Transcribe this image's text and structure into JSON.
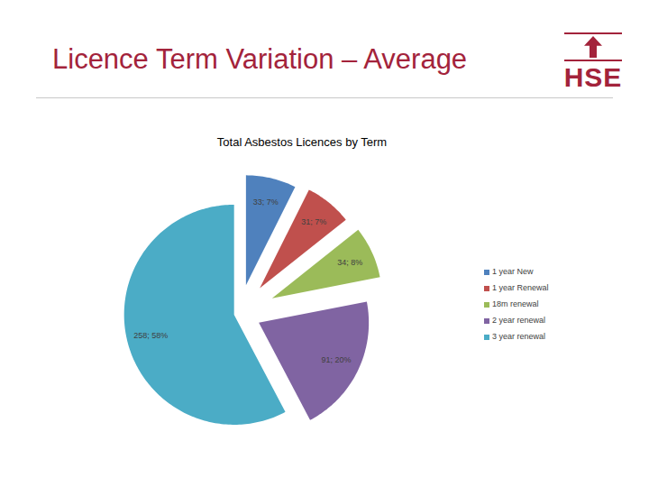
{
  "slide_title": "Licence Term Variation – Average",
  "logo": "HSE",
  "chart_data": {
    "type": "pie",
    "title": "Total Asbestos Licences by Term",
    "categories": [
      "1 year New",
      "1 year Renewal",
      "18m renewal",
      "2 year renewal",
      "3 year renewal"
    ],
    "values": [
      33,
      31,
      34,
      91,
      258
    ],
    "value_labels": [
      "33; 7%",
      "31; 7%",
      "34; 8%",
      "91; 20%",
      "258; 58%"
    ],
    "colors": [
      "#4F81BD",
      "#C0504D",
      "#9BBB59",
      "#8064A2",
      "#4BACC6"
    ],
    "data_labels": true,
    "legend": "right"
  }
}
